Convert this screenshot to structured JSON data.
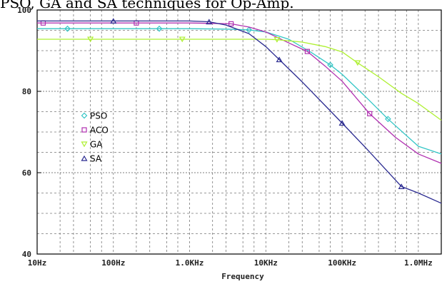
{
  "title_fragment": "PSO, GA and SA techniques for Op-Amp.",
  "chart_data": {
    "type": "line",
    "xscale": "log",
    "xlim": [
      10,
      2000000
    ],
    "ylim": [
      40,
      100
    ],
    "xlabel": "Frequency",
    "ylabel": "",
    "grid": true,
    "x_tick_labels": [
      "10Hz",
      "100Hz",
      "1.0KHz",
      "10KHz",
      "100KHz",
      "1.0MHz"
    ],
    "y_tick_labels": [
      "40",
      "60",
      "80",
      "100"
    ],
    "y_tick_values": [
      40,
      60,
      80,
      100
    ],
    "legend_position": "left-middle",
    "series": [
      {
        "name": "PSO",
        "color": "#33c6c6",
        "marker": "diamond",
        "x": [
          10,
          25,
          100,
          400,
          1000,
          3000,
          6000,
          10000,
          20000,
          40000,
          70000,
          100000,
          200000,
          400000,
          1000000,
          2000000
        ],
        "y": [
          95.4,
          95.4,
          95.4,
          95.4,
          95.4,
          95.3,
          95.1,
          94.6,
          92.8,
          89.5,
          86.5,
          84.2,
          78.8,
          73.2,
          66.5,
          64.6
        ],
        "marker_x": [
          25,
          400,
          6000,
          70000,
          400000
        ]
      },
      {
        "name": "ACO",
        "color": "#b030b0",
        "marker": "square",
        "x": [
          10,
          100,
          200,
          1000,
          2000,
          3500,
          6000,
          10000,
          20000,
          35000,
          60000,
          100000,
          230000,
          500000,
          1000000,
          2000000
        ],
        "y": [
          96.8,
          96.8,
          96.8,
          96.8,
          96.7,
          96.6,
          95.8,
          94.6,
          91.9,
          89.8,
          86.2,
          82.5,
          74.5,
          68.7,
          64.6,
          62.3
        ],
        "marker_x": [
          12,
          200,
          3500,
          35000,
          230000
        ]
      },
      {
        "name": "GA",
        "color": "#aef030",
        "marker": "triangle-down",
        "x": [
          10,
          50,
          800,
          10000,
          14000,
          30000,
          60000,
          100000,
          160000,
          300000,
          600000,
          1000000,
          2000000
        ],
        "y": [
          92.8,
          92.8,
          92.8,
          92.8,
          92.7,
          92.1,
          91.0,
          89.7,
          87.0,
          83.6,
          79.5,
          77.0,
          72.9
        ],
        "marker_x": [
          50,
          800,
          14000,
          160000
        ]
      },
      {
        "name": "SA",
        "color": "#2a2a90",
        "marker": "triangle-up",
        "x": [
          10,
          100,
          1000,
          1800,
          3000,
          6000,
          10000,
          15000,
          30000,
          60000,
          100000,
          200000,
          600000,
          1000000,
          2000000
        ],
        "y": [
          97.3,
          97.3,
          97.3,
          97.1,
          96.3,
          94.2,
          91.0,
          87.8,
          82.3,
          76.5,
          72.2,
          66.3,
          56.6,
          55.0,
          52.5
        ],
        "marker_x": [
          100,
          1800,
          15000,
          100000,
          600000
        ]
      }
    ]
  }
}
